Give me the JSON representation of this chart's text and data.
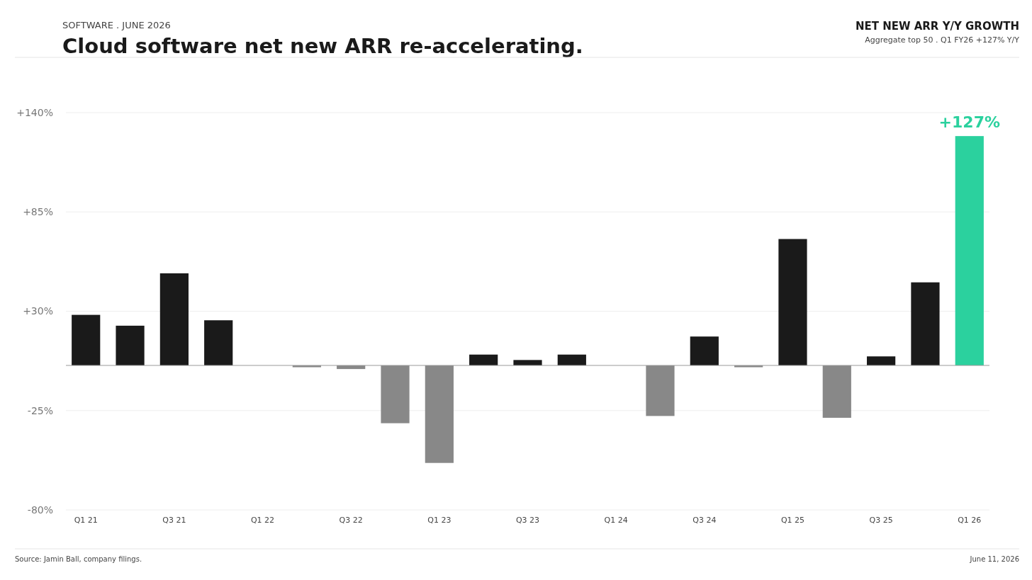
{
  "chart_data": {
    "type": "bar",
    "title": "Cloud software net new ARR re-accelerating.",
    "subtitle": "SOFTWARE   .   JUNE 2026",
    "annotations": [
      "NET NEW ARR Y/Y GROWTH",
      "Aggregate top 50   .   Q1 FY26 +127% Y/Y",
      "Source: Jamin Ball, company filings.",
      "June 11, 2026"
    ],
    "categories": [
      "Q1 21",
      null,
      "Q3 21",
      null,
      "Q1 22",
      null,
      "Q3 22",
      null,
      "Q1 23",
      null,
      "Q3 23",
      null,
      "Q1 24",
      null,
      "Q3 24",
      null,
      "Q1 25",
      null,
      "Q3 25",
      null,
      "Q1 26"
    ],
    "values": [
      28,
      22,
      51,
      25,
      0,
      -1,
      -2,
      -32,
      -54,
      6,
      3,
      6,
      0,
      -28,
      16,
      -1,
      70,
      -29,
      5,
      46,
      127
    ],
    "colors": [
      "#1a1a1a",
      "#1a1a1a",
      "#1a1a1a",
      "#1a1a1a",
      "#1a1a1a",
      "#888888",
      "#888888",
      "#888888",
      "#888888",
      "#1a1a1a",
      "#1a1a1a",
      "#1a1a1a",
      "#1a1a1a",
      "#888888",
      "#1a1a1a",
      "#888888",
      "#1a1a1a",
      "#888888",
      "#1a1a1a",
      "#1a1a1a",
      "#2bd19e"
    ],
    "value_labels": [
      null,
      null,
      null,
      null,
      null,
      null,
      null,
      null,
      null,
      null,
      null,
      null,
      null,
      null,
      null,
      null,
      null,
      null,
      null,
      null,
      "+127%"
    ],
    "ylim": [
      -80,
      140
    ],
    "yticks": [
      {
        "value": -80,
        "label": "-80%"
      },
      {
        "value": -25,
        "label": "-25%"
      },
      {
        "value": 30,
        "label": "+30%"
      },
      {
        "value": 85,
        "label": "+85%"
      },
      {
        "value": 140,
        "label": "+140%"
      }
    ],
    "grid": "y"
  }
}
